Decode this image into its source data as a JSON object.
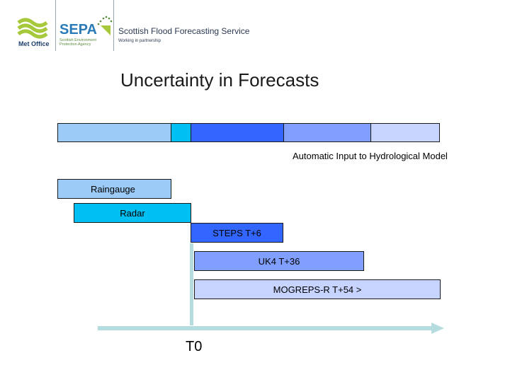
{
  "header": {
    "metoffice_label": "Met Office",
    "sepa_acronym": "SEPA",
    "sepa_subtitle": "Scottish Environment Protection Agency",
    "service_title": "Scottish Flood Forecasting Service",
    "service_subtitle": "Working in partnership"
  },
  "title": "Uncertainty in Forecasts",
  "bar_caption": "Automatic Input to Hydrological Model",
  "sources": [
    {
      "label": "Raingauge",
      "color": "#9ccbf7"
    },
    {
      "label": "Radar",
      "color": "#00bff3"
    },
    {
      "label": "STEPS T+6",
      "color": "#3366ff"
    },
    {
      "label": "UK4 T+36",
      "color": "#809fff"
    },
    {
      "label": "MOGREPS-R T+54 >",
      "color": "#c6d4ff"
    }
  ],
  "axis": {
    "t0_label": "T0",
    "arrow_color": "#b5dde0"
  }
}
